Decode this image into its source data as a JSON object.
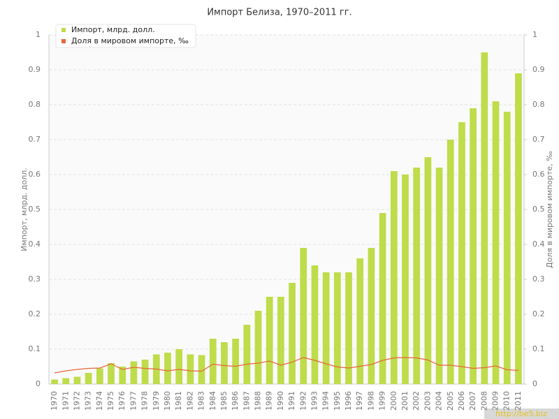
{
  "chart_data": {
    "type": "bar-line",
    "title": "Импорт Белиза, 1970–2011 гг.",
    "y_label": "Импорт, млрд. долл.",
    "y2_label": "Доля в мировом импорте, ‰",
    "watermark": "http://be5.biz",
    "categories": [
      "1970",
      "1971",
      "1972",
      "1973",
      "1974",
      "1975",
      "1976",
      "1977",
      "1978",
      "1979",
      "1980",
      "1981",
      "1982",
      "1983",
      "1984",
      "1985",
      "1986",
      "1987",
      "1988",
      "1989",
      "1990",
      "1991",
      "1992",
      "1993",
      "1994",
      "1995",
      "1996",
      "1997",
      "1998",
      "1999",
      "2000",
      "2001",
      "2002",
      "2003",
      "2004",
      "2005",
      "2006",
      "2007",
      "2008",
      "2009",
      "2010",
      "2011"
    ],
    "series": [
      {
        "name": "Импорт, млрд. долл.",
        "color": "#bfdc4a",
        "type": "bar",
        "values": [
          0.013,
          0.017,
          0.021,
          0.032,
          0.045,
          0.06,
          0.05,
          0.065,
          0.07,
          0.085,
          0.09,
          0.1,
          0.085,
          0.083,
          0.13,
          0.12,
          0.13,
          0.17,
          0.21,
          0.25,
          0.25,
          0.29,
          0.39,
          0.34,
          0.32,
          0.32,
          0.32,
          0.36,
          0.39,
          0.49,
          0.61,
          0.6,
          0.62,
          0.65,
          0.62,
          0.7,
          0.75,
          0.79,
          0.95,
          0.81,
          0.78,
          0.89
        ]
      },
      {
        "name": "Доля в мировом импорте, ‰",
        "color": "#e8643c",
        "type": "line",
        "axis": "y2",
        "values": [
          0.032,
          0.038,
          0.042,
          0.045,
          0.046,
          0.058,
          0.042,
          0.048,
          0.045,
          0.043,
          0.038,
          0.042,
          0.038,
          0.037,
          0.057,
          0.053,
          0.051,
          0.057,
          0.06,
          0.066,
          0.054,
          0.063,
          0.076,
          0.068,
          0.058,
          0.049,
          0.046,
          0.051,
          0.056,
          0.068,
          0.075,
          0.076,
          0.075,
          0.069,
          0.054,
          0.054,
          0.05,
          0.045,
          0.047,
          0.052,
          0.041,
          0.039
        ]
      }
    ],
    "ylim": [
      0,
      1
    ],
    "yticks": [
      0,
      0.1,
      0.2,
      0.3,
      0.4,
      0.5,
      0.6,
      0.7,
      0.8,
      0.9,
      1
    ],
    "y2lim": [
      0,
      1
    ],
    "y2ticks": [
      0,
      0.1,
      0.2,
      0.3,
      0.4,
      0.5,
      0.6,
      0.7,
      0.8,
      0.9,
      1
    ],
    "grid": true,
    "legend": "top-left"
  }
}
